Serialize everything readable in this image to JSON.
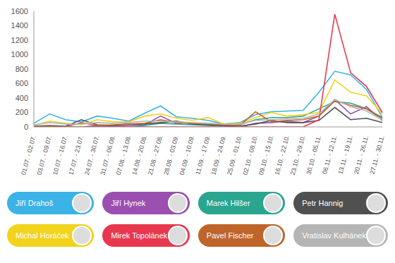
{
  "chart_data": {
    "type": "line",
    "categories": [
      "01.07. - 02.07.",
      "03.07. - 09.07.",
      "10.07. - 16.07.",
      "17.07. - 23.07.",
      "24.07. - 30.07.",
      "31.07. - 06.08.",
      "07.08. - 13.08.",
      "14.08. - 20.08.",
      "21.08. - 27.08.",
      "28.08. - 03.09.",
      "04.09. - 10.09.",
      "11.09. - 17.09.",
      "18.09. - 24.09.",
      "25.09. - 01.10.",
      "02.10. - 08.10.",
      "09.10. - 15.10.",
      "16.10. - 22.10.",
      "23.10. - 29.10.",
      "30.10. - 05.11.",
      "06.11. - 12.11.",
      "13.11. - 19.11.",
      "20.11. - 26.11.",
      "27.11. - 30.11."
    ],
    "series": [
      {
        "name": "Jiří Drahoš",
        "color": "#3bb3e6",
        "values": [
          50,
          180,
          100,
          70,
          150,
          120,
          80,
          190,
          290,
          140,
          120,
          90,
          40,
          60,
          170,
          210,
          220,
          230,
          480,
          770,
          720,
          520,
          130
        ]
      },
      {
        "name": "Jiří Hynek",
        "color": "#9b4fb0",
        "values": [
          0,
          0,
          0,
          0,
          20,
          10,
          20,
          30,
          150,
          50,
          60,
          30,
          10,
          0,
          50,
          60,
          80,
          60,
          150,
          380,
          180,
          280,
          90
        ]
      },
      {
        "name": "Marek Hilšer",
        "color": "#2aa58e",
        "values": [
          0,
          0,
          0,
          0,
          0,
          0,
          0,
          20,
          50,
          40,
          30,
          20,
          10,
          30,
          100,
          130,
          130,
          150,
          250,
          350,
          330,
          250,
          110
        ]
      },
      {
        "name": "Petr Hannig",
        "color": "#505050",
        "values": [
          10,
          20,
          10,
          100,
          30,
          20,
          40,
          40,
          60,
          80,
          40,
          30,
          20,
          10,
          40,
          90,
          60,
          60,
          90,
          270,
          100,
          120,
          60
        ]
      },
      {
        "name": "Michal Horáček",
        "color": "#f2d31b",
        "values": [
          20,
          80,
          50,
          30,
          100,
          70,
          70,
          150,
          180,
          120,
          90,
          130,
          40,
          50,
          130,
          200,
          150,
          170,
          200,
          650,
          480,
          430,
          180
        ]
      },
      {
        "name": "Mirek Topolánek",
        "color": "#e8384f",
        "values": [
          0,
          0,
          0,
          0,
          0,
          0,
          0,
          0,
          0,
          0,
          0,
          0,
          0,
          0,
          0,
          0,
          0,
          0,
          100,
          1560,
          750,
          560,
          200
        ]
      },
      {
        "name": "Pavel Fischer",
        "color": "#c0652a",
        "values": [
          0,
          10,
          0,
          60,
          20,
          30,
          40,
          50,
          100,
          60,
          50,
          40,
          30,
          20,
          210,
          70,
          90,
          100,
          150,
          360,
          300,
          250,
          130
        ]
      },
      {
        "name": "Vratislav Kulhánek",
        "color": "#b5b5b5",
        "values": [
          30,
          60,
          40,
          40,
          60,
          50,
          60,
          80,
          80,
          70,
          60,
          50,
          40,
          40,
          90,
          100,
          110,
          120,
          180,
          380,
          280,
          220,
          100
        ]
      }
    ],
    "ylim": [
      0,
      1600
    ],
    "yticks": [
      0,
      200,
      400,
      600,
      800,
      1000,
      1200,
      1400,
      1600
    ],
    "grid": false,
    "legend": "bottom"
  }
}
